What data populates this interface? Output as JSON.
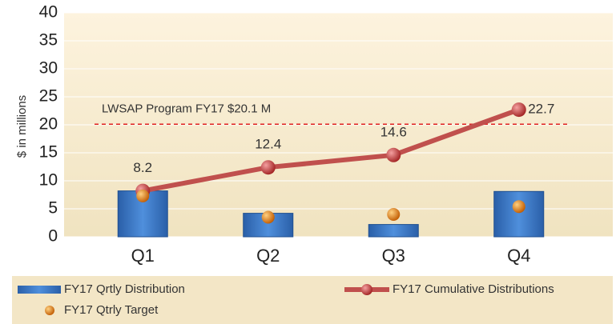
{
  "chart_data": {
    "type": "combo",
    "y_axis_label": "$ in millions",
    "categories": [
      "Q1",
      "Q2",
      "Q3",
      "Q4"
    ],
    "series": [
      {
        "name": "FY17 Qrtly Distribution",
        "type": "bar",
        "color": "#3b77c6",
        "values": [
          8.2,
          4.2,
          2.2,
          8.1
        ]
      },
      {
        "name": "FY17 Cumulative Distributions",
        "type": "line",
        "color": "#c0504d",
        "values": [
          8.2,
          12.4,
          14.6,
          22.7
        ],
        "data_labels": true
      },
      {
        "name": "FY17 Qtrly Target",
        "type": "scatter",
        "color": "#e3801a",
        "values": [
          7.3,
          3.5,
          4.0,
          5.4
        ]
      }
    ],
    "reference_line": {
      "value": 20.1,
      "label": "LWSAP Program FY17 $20.1 M",
      "color": "#e02020"
    },
    "ylim": [
      0,
      40
    ],
    "yticks": [
      0,
      5,
      10,
      15,
      20,
      25,
      30,
      35,
      40
    ],
    "grid": true
  }
}
